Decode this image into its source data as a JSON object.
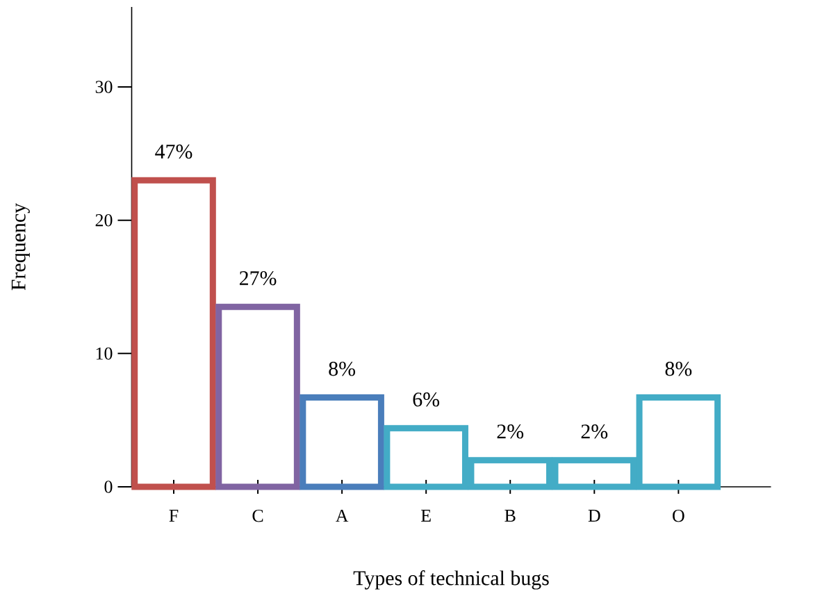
{
  "chart_data": {
    "type": "bar",
    "xlabel": "Types of technical bugs",
    "ylabel": "Frequency",
    "categories": [
      "F",
      "C",
      "A",
      "E",
      "B",
      "D",
      "O"
    ],
    "values": [
      23,
      13.5,
      6.7,
      4.4,
      2,
      2,
      6.7
    ],
    "colors": [
      "#c0504d",
      "#8064a2",
      "#4a7ebb",
      "#43acc6",
      "#43acc6",
      "#43acc6",
      "#43acc6"
    ],
    "annotations": [
      {
        "text": "47%",
        "x": "F",
        "y": 23
      },
      {
        "text": "27%",
        "x": "C",
        "y": 13.5
      },
      {
        "text": "8%",
        "x": "A",
        "y": 6.7
      },
      {
        "text": "6%",
        "x": "E",
        "y": 4.4
      },
      {
        "text": "2%",
        "x": "B",
        "y": 2
      },
      {
        "text": "2%",
        "x": "D",
        "y": 2
      },
      {
        "text": "8%",
        "x": "O",
        "y": 6.7
      }
    ],
    "ylim": [
      0,
      36
    ],
    "yticks": [
      0,
      10,
      20,
      30
    ]
  }
}
